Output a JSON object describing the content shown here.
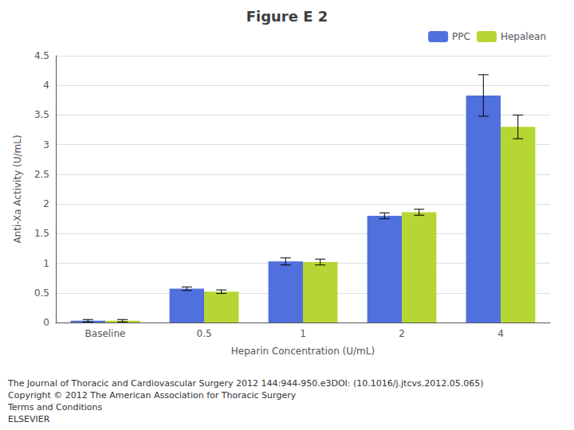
{
  "chart_data": {
    "type": "bar",
    "title": "Figure E 2",
    "x_label": "Heparin Concentration (U/mL)",
    "y_label": "Anti-Xa Activity (U/mL)",
    "categories": [
      "Baseline",
      "0.5",
      "1",
      "2",
      "4"
    ],
    "series": [
      {
        "name": "PPC",
        "values": [
          0.03,
          0.57,
          1.03,
          1.8,
          3.83
        ],
        "errors": [
          0.02,
          0.03,
          0.06,
          0.05,
          0.35
        ]
      },
      {
        "name": "Hepalean",
        "values": [
          0.03,
          0.52,
          1.02,
          1.86,
          3.3
        ],
        "errors": [
          0.02,
          0.03,
          0.05,
          0.05,
          0.2
        ]
      }
    ],
    "ylim": [
      0,
      4.5
    ],
    "yticks": [
      0,
      0.5,
      1,
      1.5,
      2,
      2.5,
      3,
      3.5,
      4,
      4.5
    ],
    "grid": true,
    "legend": "upper right",
    "annotations": [
      "The Journal of Thoracic and Cardiovascular Surgery 2012 144:944-950.e3DOI: (10.1016/j.jtcvs.2012.05.065)",
      "Copyright © 2012 The American Association for Thoracic Surgery",
      "Terms and Conditions",
      "ELSEVIER"
    ]
  }
}
